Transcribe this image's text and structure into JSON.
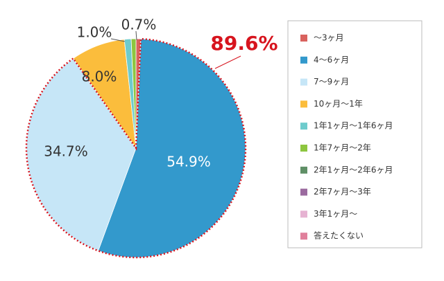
{
  "chart_data": {
    "type": "pie",
    "categories": [
      "〜3ヶ月",
      "4〜6ヶ月",
      "7〜9ヶ月",
      "10ヶ月〜1年",
      "1年1ヶ月〜1年6ヶ月",
      "1年7ヶ月〜2年",
      "2年1ヶ月〜2年6ヶ月",
      "2年7ヶ月〜3年",
      "3年1ヶ月〜",
      "答えたくない"
    ],
    "values": [
      0.7,
      54.9,
      34.7,
      8.0,
      1.0,
      0.7,
      0,
      0,
      0,
      0
    ],
    "value_labels": [
      "0.7%",
      "54.9%",
      "34.7%",
      "8.0%",
      "1.0%",
      null,
      null,
      null,
      null,
      null
    ],
    "colors": [
      "#d9625e",
      "#3399cc",
      "#c6e6f7",
      "#fbbd3c",
      "#6ecbcc",
      "#8dc63f",
      "#5f8f66",
      "#9b6a9f",
      "#e6b3d2",
      "#e0809c"
    ],
    "annotation": "89.6%",
    "legend": "right"
  }
}
